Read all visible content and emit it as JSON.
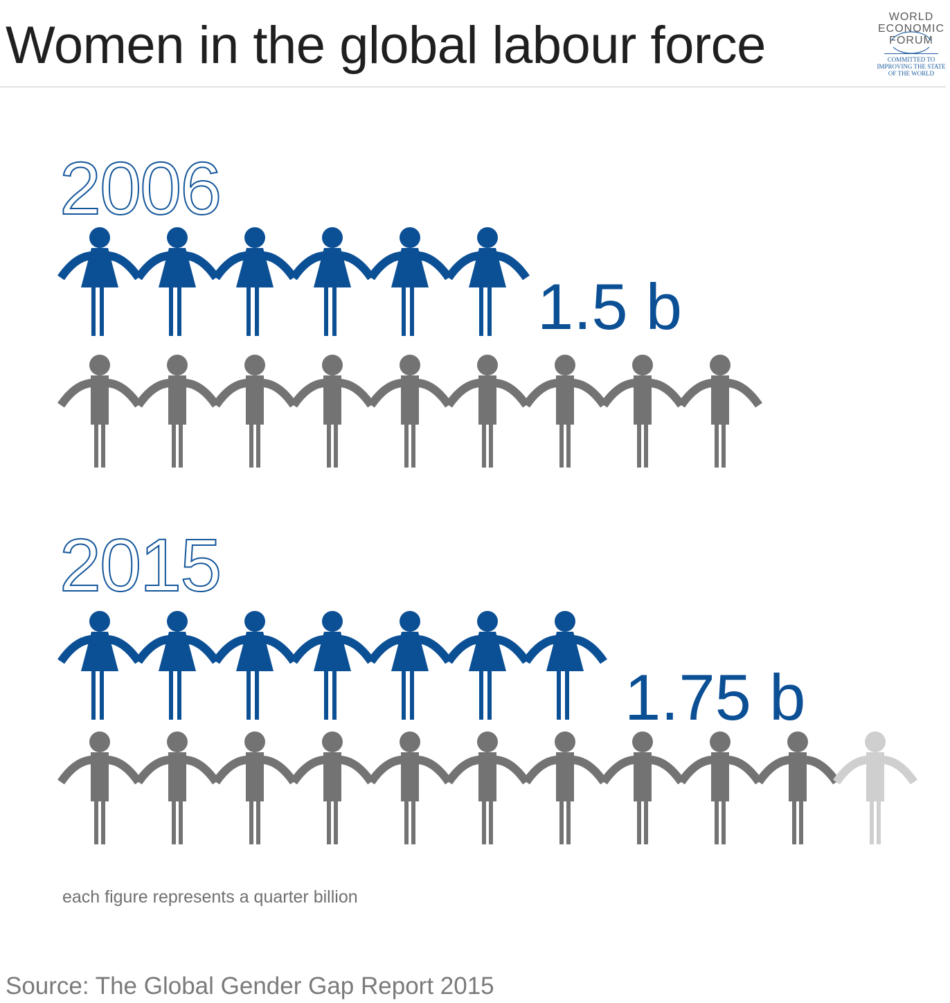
{
  "header": {
    "title": "Women in the global labour force"
  },
  "logo": {
    "name_lines": [
      "WORLD",
      "ECONOMIC",
      "FORUM"
    ],
    "tagline_lines": [
      "COMMITTED TO",
      "IMPROVING THE STATE",
      "OF THE WORLD"
    ]
  },
  "chart_data": {
    "type": "pictogram",
    "unit_label": "each figure represents a quarter billion",
    "unit_value_billion": 0.25,
    "colors": {
      "women": "#0b4f95",
      "labour_force": "#737373",
      "partial_figure": "#cfcfcf"
    },
    "groups": [
      {
        "year": "2006",
        "women_billion": 1.5,
        "women_label": "1.5 b",
        "total_figures": 9
      },
      {
        "year": "2015",
        "women_billion": 1.75,
        "women_label": "1.75 b",
        "total_figures": 10.5
      }
    ]
  },
  "footer": {
    "note": "each figure represents a quarter billion",
    "source": "Source: The Global Gender Gap Report 2015"
  }
}
